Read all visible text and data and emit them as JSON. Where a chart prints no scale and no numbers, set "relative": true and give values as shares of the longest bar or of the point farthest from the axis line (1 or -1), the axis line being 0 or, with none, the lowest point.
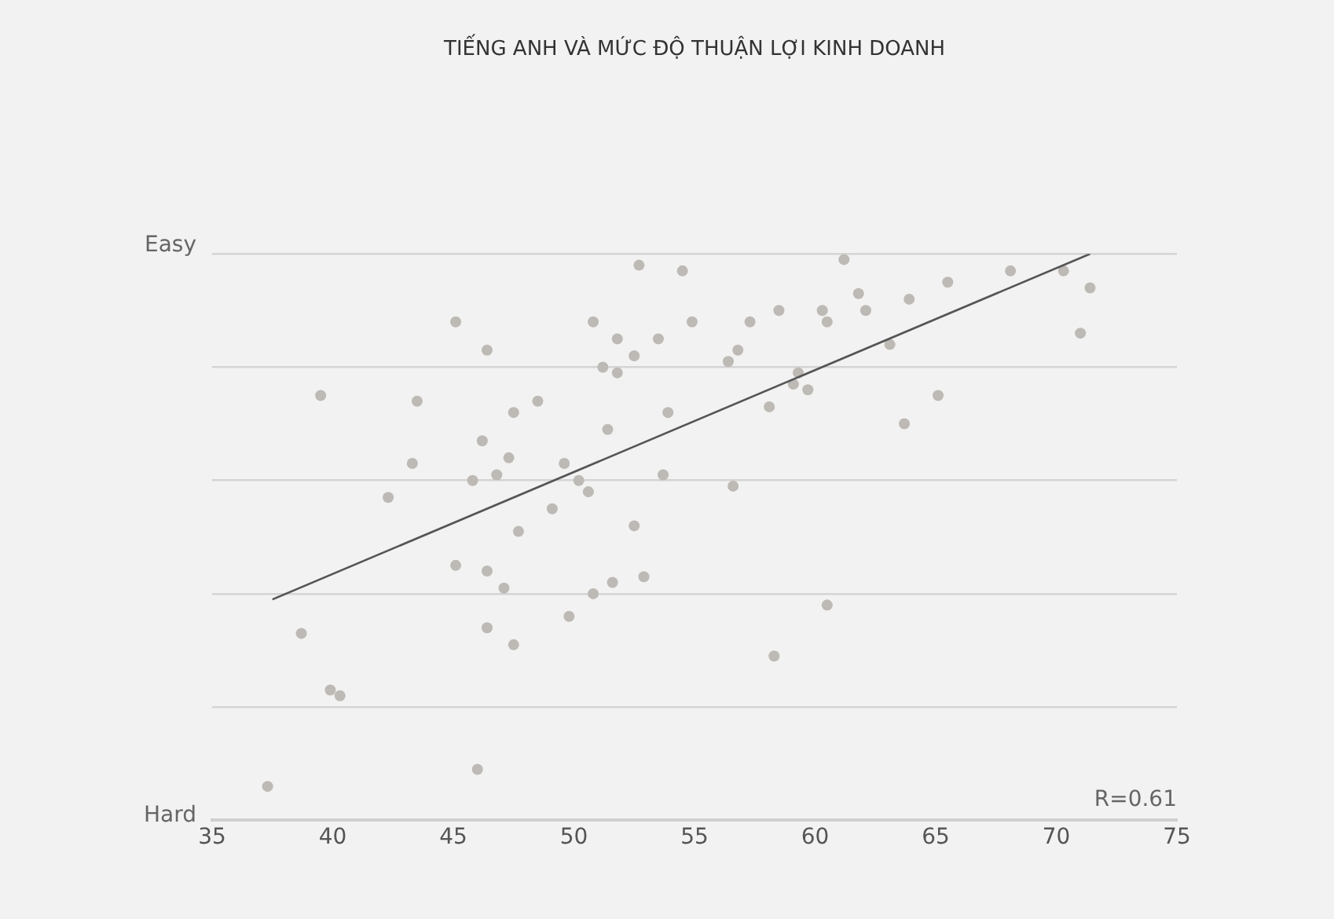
{
  "chart_data": {
    "type": "scatter",
    "title": "TIẾNG ANH VÀ MỨC ĐỘ THUẬN LỢI KINH DOANH",
    "annotations": [
      "Easy",
      "Hard",
      "R=0.61"
    ],
    "relative": true,
    "xlim": [
      35,
      75
    ],
    "xticks": [
      35,
      40,
      45,
      50,
      55,
      60,
      65,
      70,
      75
    ],
    "grid": "y",
    "legend": false,
    "marker": "circle",
    "series": [
      {
        "color": "#bdb9b4",
        "x": [
          37.3,
          38.7,
          39.5,
          39.9,
          40.3,
          42.3,
          43.3,
          43.5,
          45.1,
          45.1,
          45.8,
          46.0,
          46.2,
          46.4,
          46.4,
          46.4,
          46.8,
          47.1,
          47.3,
          47.5,
          47.5,
          47.7,
          48.5,
          49.1,
          49.6,
          49.8,
          50.2,
          50.6,
          50.8,
          50.8,
          51.2,
          51.4,
          51.6,
          51.8,
          51.8,
          52.5,
          52.5,
          52.7,
          52.9,
          53.5,
          53.7,
          53.9,
          54.5,
          54.9,
          56.4,
          56.6,
          56.8,
          57.3,
          58.1,
          58.3,
          58.5,
          59.1,
          59.3,
          59.7,
          60.3,
          60.5,
          60.5,
          61.2,
          61.8,
          62.1,
          63.1,
          63.7,
          63.9,
          65.1,
          65.5,
          68.1,
          70.3,
          71.0,
          71.4
        ],
        "values": [
          0.06,
          0.33,
          0.75,
          0.23,
          0.22,
          0.57,
          0.63,
          0.74,
          0.88,
          0.45,
          0.6,
          0.09,
          0.67,
          0.83,
          0.44,
          0.34,
          0.61,
          0.41,
          0.64,
          0.72,
          0.31,
          0.51,
          0.74,
          0.55,
          0.63,
          0.36,
          0.6,
          0.58,
          0.88,
          0.4,
          0.8,
          0.69,
          0.42,
          0.85,
          0.79,
          0.82,
          0.52,
          0.98,
          0.43,
          0.85,
          0.61,
          0.72,
          0.97,
          0.88,
          0.81,
          0.59,
          0.83,
          0.88,
          0.73,
          0.29,
          0.9,
          0.77,
          0.79,
          0.76,
          0.9,
          0.88,
          0.38,
          0.99,
          0.93,
          0.9,
          0.84,
          0.7,
          0.92,
          0.75,
          0.95,
          0.97,
          0.97,
          0.86,
          0.94
        ]
      },
      {
        "type": "line",
        "color": "#555555",
        "marker": "none",
        "x": [
          37.5,
          71.4
        ],
        "values": [
          0.39,
          1
        ]
      }
    ]
  }
}
